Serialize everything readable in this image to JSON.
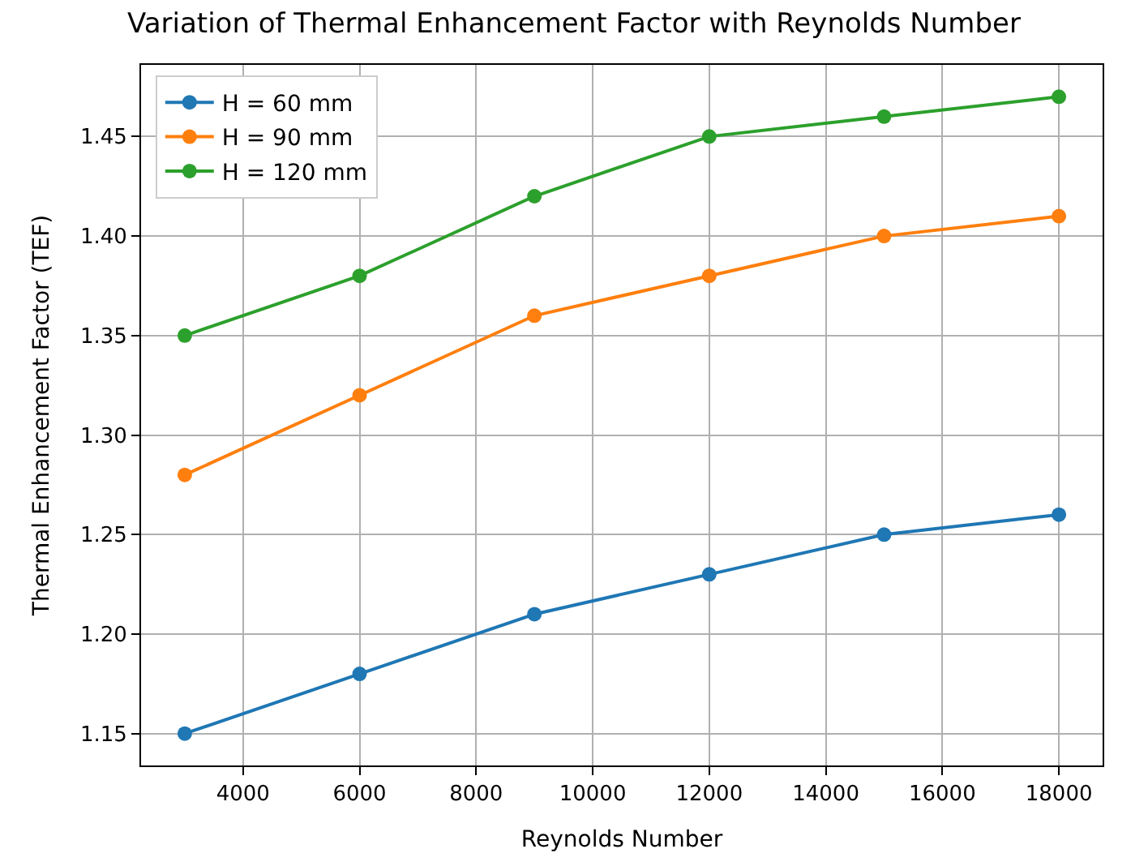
{
  "chart_data": {
    "type": "line",
    "title": "Variation of Thermal Enhancement Factor with Reynolds Number",
    "xlabel": "Reynolds Number",
    "ylabel": "Thermal Enhancement Factor (TEF)",
    "x": [
      3000,
      6000,
      9000,
      12000,
      15000,
      18000
    ],
    "series": [
      {
        "name": "H = 60 mm",
        "color": "#1f77b4",
        "values": [
          1.15,
          1.18,
          1.21,
          1.23,
          1.25,
          1.26
        ]
      },
      {
        "name": "H = 90 mm",
        "color": "#ff7f0e",
        "values": [
          1.28,
          1.32,
          1.36,
          1.38,
          1.4,
          1.41
        ]
      },
      {
        "name": "H = 120 mm",
        "color": "#2ca02c",
        "values": [
          1.35,
          1.38,
          1.42,
          1.45,
          1.46,
          1.47
        ]
      }
    ],
    "xlim": [
      2250,
      18750
    ],
    "xticks": [
      4000,
      6000,
      8000,
      10000,
      12000,
      14000,
      16000,
      18000
    ],
    "ylim": [
      1.134,
      1.486
    ],
    "yticks": [
      {
        "value": 1.15,
        "label": "1.15"
      },
      {
        "value": 1.2,
        "label": "1.20"
      },
      {
        "value": 1.25,
        "label": "1.25"
      },
      {
        "value": 1.3,
        "label": "1.30"
      },
      {
        "value": 1.35,
        "label": "1.35"
      },
      {
        "value": 1.4,
        "label": "1.40"
      },
      {
        "value": 1.45,
        "label": "1.45"
      }
    ],
    "grid": true,
    "legend": "top left",
    "marker": "circle",
    "line_style": "solid"
  }
}
